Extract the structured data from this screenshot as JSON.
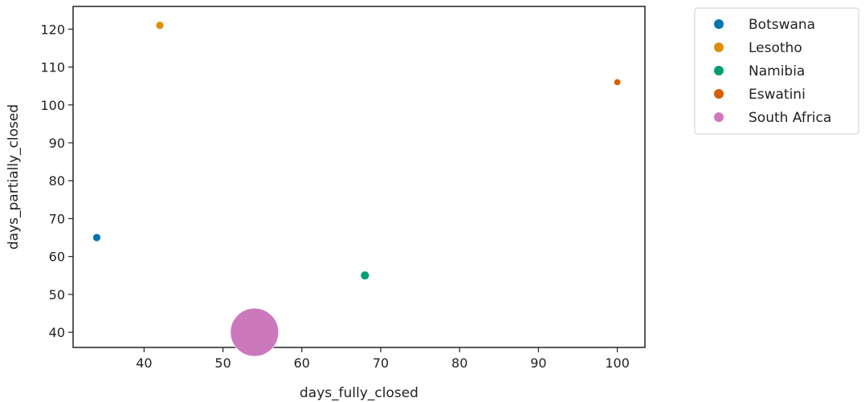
{
  "chart_data": {
    "type": "scatter",
    "xlabel": "days_fully_closed",
    "ylabel": "days_partially_closed",
    "xlim": [
      31,
      103.5
    ],
    "ylim": [
      36,
      126
    ],
    "xticks": [
      40,
      50,
      60,
      70,
      80,
      90,
      100
    ],
    "yticks": [
      40,
      50,
      60,
      70,
      80,
      90,
      100,
      110,
      120
    ],
    "grid": false,
    "legend_position": "outside-top-right",
    "series": [
      {
        "name": "Botswana",
        "color": "#0173b2",
        "points": [
          {
            "x": 34,
            "y": 65
          }
        ],
        "relative_size": 1.0
      },
      {
        "name": "Lesotho",
        "color": "#de8f05",
        "points": [
          {
            "x": 42,
            "y": 121
          }
        ],
        "relative_size": 1.0
      },
      {
        "name": "Namibia",
        "color": "#029e73",
        "points": [
          {
            "x": 68,
            "y": 55
          }
        ],
        "relative_size": 1.1
      },
      {
        "name": "Eswatini",
        "color": "#d55e00",
        "points": [
          {
            "x": 100,
            "y": 106
          }
        ],
        "relative_size": 0.85
      },
      {
        "name": "South Africa",
        "color": "#cc78bc",
        "points": [
          {
            "x": 54,
            "y": 40
          }
        ],
        "relative_size": 6.0
      }
    ]
  }
}
